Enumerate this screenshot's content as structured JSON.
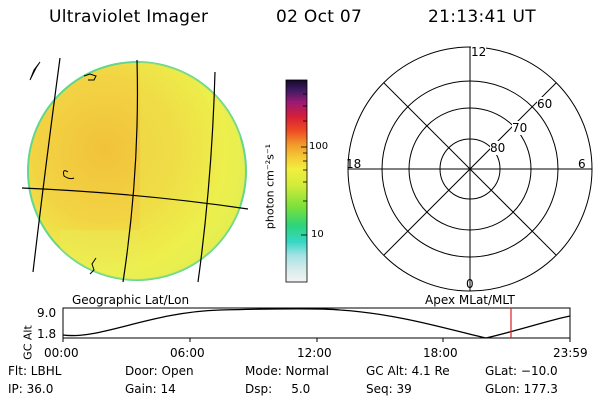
{
  "header": {
    "title": "Ultraviolet Imager",
    "date": "02 Oct 07",
    "time": "21:13:41 UT"
  },
  "colorbar": {
    "unit_label": "photon cm⁻²s⁻¹",
    "ticks": [
      "100",
      "10"
    ]
  },
  "polar_plot": {
    "hour_labels": {
      "top": "12",
      "left": "18",
      "right": "6",
      "bottom": "0"
    },
    "lat_labels": [
      "60",
      "70",
      "80"
    ]
  },
  "panel_labels": {
    "geographic": "Geographic Lat/Lon",
    "apex": "Apex MLat/MLT"
  },
  "timeline": {
    "ylabel": "GC Alt",
    "ytick_top": "9.0",
    "ytick_bottom": "1.8",
    "xticks": [
      "00:00",
      "06:00",
      "12:00",
      "18:00",
      "23:59"
    ]
  },
  "info": {
    "flt": "Flt: LBHL",
    "door": "Door: Open",
    "mode": "Mode: Normal",
    "gc_alt": "GC Alt: 4.1 Re",
    "glat": "GLat: −10.0",
    "ip": "IP: 36.0",
    "gain": "Gain: 14",
    "dsp": "Dsp:     5.0",
    "seq": "Seq: 39",
    "glon": "GLon: 177.3"
  },
  "colors": {
    "disk_main": "#f2f04a",
    "disk_orange": "#f0c23a",
    "disk_edge": "#5fd88a",
    "time_marker": "#e02020"
  }
}
